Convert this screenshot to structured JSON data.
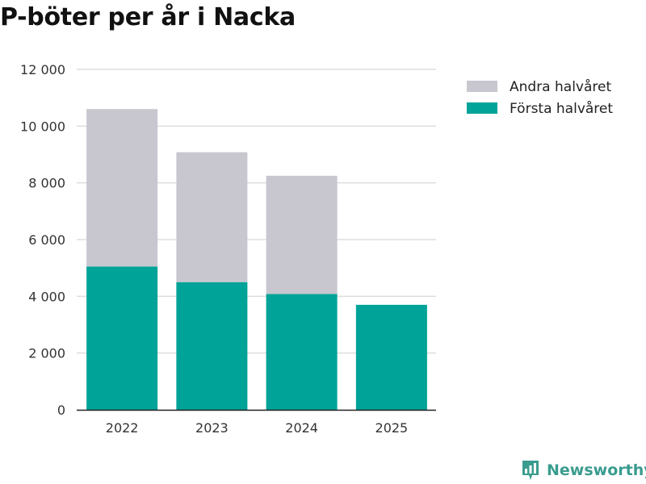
{
  "chart_data": {
    "type": "bar",
    "stacked": true,
    "title": "P-böter per år i Nacka",
    "categories": [
      "2022",
      "2023",
      "2024",
      "2025"
    ],
    "series": [
      {
        "name": "Första halvåret",
        "color": "#00a398",
        "values": [
          5050,
          4500,
          4080,
          3700
        ]
      },
      {
        "name": "Andra halvåret",
        "color": "#c8c7cf",
        "values": [
          5550,
          4580,
          4170,
          0
        ]
      }
    ],
    "ylim": [
      0,
      12000
    ],
    "yticks": [
      0,
      2000,
      4000,
      6000,
      8000,
      10000,
      12000
    ],
    "ytick_labels": [
      "0",
      "2 000",
      "4 000",
      "6 000",
      "8 000",
      "10 000",
      "12 000"
    ],
    "xlabel": "",
    "ylabel": "",
    "grid": true,
    "legend_position": "top-right",
    "legend_order": [
      "Andra halvåret",
      "Första halvåret"
    ]
  },
  "branding": {
    "name": "Newsworthy",
    "logo_icon": "newsworthy-logo-icon",
    "color": "#3a9c8f"
  }
}
